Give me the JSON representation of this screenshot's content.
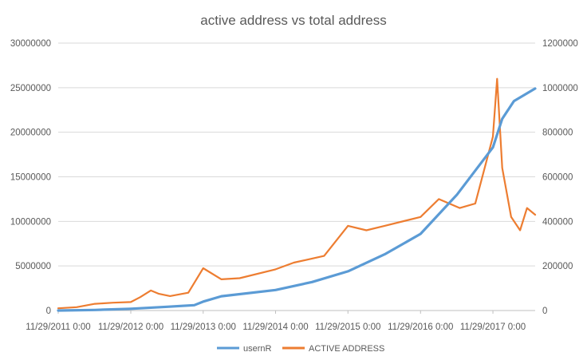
{
  "chart_data": {
    "type": "line",
    "title": "active address vs total address",
    "x_ticks": [
      "11/29/2011 0:00",
      "11/29/2012 0:00",
      "11/29/2013 0:00",
      "11/29/2014 0:00",
      "11/29/2015 0:00",
      "11/29/2016 0:00",
      "11/29/2017 0:00"
    ],
    "x_range": [
      "2011-11-29",
      "2018-06-30"
    ],
    "y_left": {
      "min": 0,
      "max": 30000000,
      "ticks": [
        "0",
        "5000000",
        "10000000",
        "15000000",
        "20000000",
        "25000000",
        "30000000"
      ]
    },
    "y_right": {
      "min": 0,
      "max": 1200000,
      "ticks": [
        "0",
        "200000",
        "400000",
        "600000",
        "800000",
        "1000000",
        "1200000"
      ]
    },
    "grid": "horizontal",
    "legend_position": "bottom",
    "series": [
      {
        "name": "usernR",
        "axis": "left",
        "color": "#5B9BD5",
        "points": [
          [
            "2011-11-29",
            0
          ],
          [
            "2012-06-01",
            60000
          ],
          [
            "2012-11-29",
            200000
          ],
          [
            "2013-06-01",
            420000
          ],
          [
            "2013-10-15",
            600000
          ],
          [
            "2013-11-29",
            1000000
          ],
          [
            "2014-03-01",
            1600000
          ],
          [
            "2014-11-29",
            2300000
          ],
          [
            "2015-06-01",
            3200000
          ],
          [
            "2015-11-29",
            4400000
          ],
          [
            "2016-06-01",
            6300000
          ],
          [
            "2016-11-29",
            8600000
          ],
          [
            "2017-06-01",
            13000000
          ],
          [
            "2017-11-29",
            18300000
          ],
          [
            "2018-01-15",
            21500000
          ],
          [
            "2018-03-15",
            23500000
          ],
          [
            "2018-06-30",
            24900000
          ]
        ]
      },
      {
        "name": "ACTIVE ADDRESS",
        "axis": "right",
        "color": "#ED7D31",
        "points": [
          [
            "2011-11-29",
            10000
          ],
          [
            "2012-03-01",
            15000
          ],
          [
            "2012-06-01",
            30000
          ],
          [
            "2012-09-01",
            35000
          ],
          [
            "2012-11-29",
            38000
          ],
          [
            "2013-01-15",
            60000
          ],
          [
            "2013-03-10",
            90000
          ],
          [
            "2013-04-20",
            75000
          ],
          [
            "2013-06-15",
            65000
          ],
          [
            "2013-09-15",
            80000
          ],
          [
            "2013-11-29",
            190000
          ],
          [
            "2014-03-01",
            140000
          ],
          [
            "2014-06-01",
            145000
          ],
          [
            "2014-11-29",
            185000
          ],
          [
            "2015-03-01",
            215000
          ],
          [
            "2015-08-01",
            245000
          ],
          [
            "2015-11-29",
            380000
          ],
          [
            "2016-03-01",
            360000
          ],
          [
            "2016-06-01",
            380000
          ],
          [
            "2016-11-29",
            420000
          ],
          [
            "2017-03-01",
            500000
          ],
          [
            "2017-06-15",
            460000
          ],
          [
            "2017-09-01",
            480000
          ],
          [
            "2017-11-29",
            780000
          ],
          [
            "2017-12-20",
            1040000
          ],
          [
            "2018-01-15",
            640000
          ],
          [
            "2018-03-01",
            420000
          ],
          [
            "2018-04-15",
            360000
          ],
          [
            "2018-05-20",
            460000
          ],
          [
            "2018-06-30",
            430000
          ]
        ]
      }
    ]
  }
}
